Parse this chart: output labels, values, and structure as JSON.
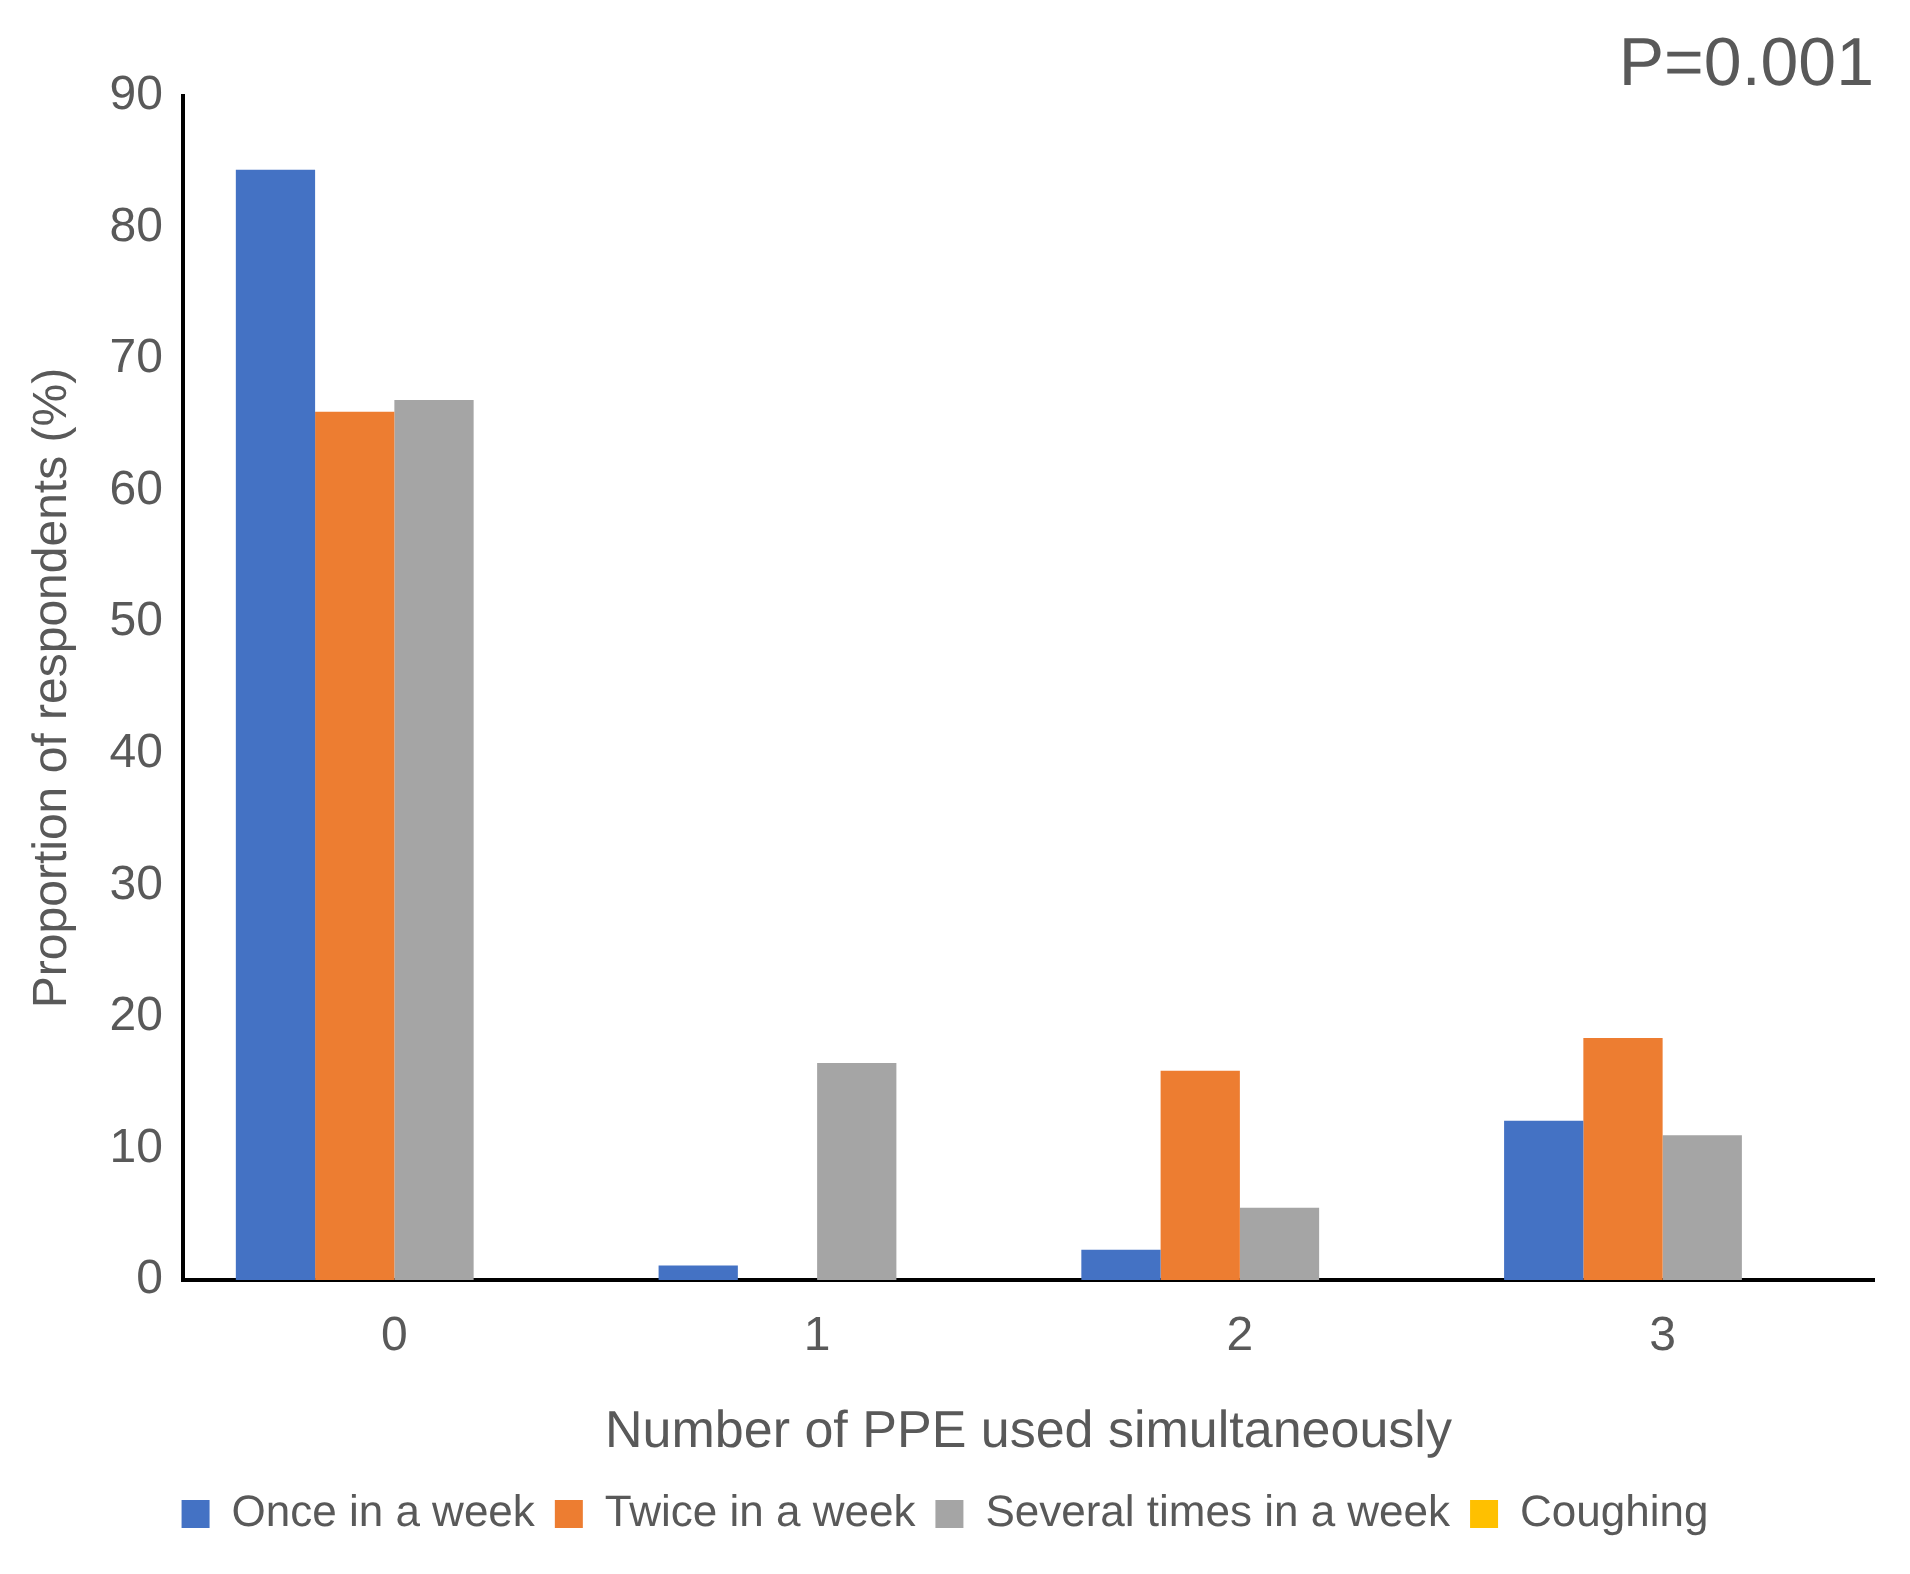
{
  "chart_data": {
    "type": "bar",
    "xlabel": "Number of PPE used simultaneously",
    "ylabel": "Proportion of respondents (%)",
    "categories": [
      "0",
      "1",
      "2",
      "3"
    ],
    "series": [
      {
        "name": "Once in a week",
        "color": "#4472c4",
        "values": [
          84.4,
          1.1,
          2.3,
          12.1
        ]
      },
      {
        "name": "Twice in a week",
        "color": "#ed7d31",
        "values": [
          66,
          0,
          15.9,
          18.4
        ]
      },
      {
        "name": "Several times in a week",
        "color": "#a5a5a5",
        "values": [
          66.9,
          16.5,
          5.5,
          11
        ]
      },
      {
        "name": "Coughing",
        "color": "#ffc000",
        "values": [
          null,
          null,
          null,
          null
        ]
      }
    ],
    "ylim": [
      0,
      90
    ],
    "yticks": [
      0,
      10,
      20,
      30,
      40,
      50,
      60,
      70,
      80,
      90
    ],
    "grid": false,
    "legend": "bottom",
    "annotations": [
      "P=0.001"
    ]
  }
}
